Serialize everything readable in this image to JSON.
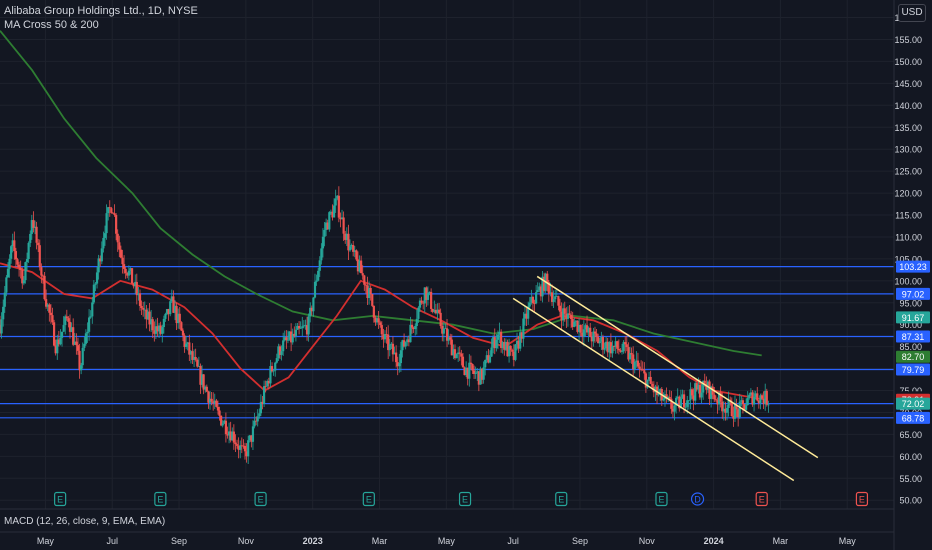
{
  "header": {
    "symbol_line": "Alibaba Group Holdings Ltd., 1D, NYSE",
    "indicator_line": "MA Cross 50 & 200",
    "currency_button": "USD"
  },
  "macd": {
    "label": "MACD (12, 26, close, 9, EMA, EMA)"
  },
  "colors": {
    "background": "#131722",
    "up": "#26a69a",
    "down": "#ef5350",
    "ma50": "#d32f2f",
    "ma200": "#2e7d32",
    "hline": "#2962ff",
    "channel": "#ffeb99",
    "grid": "#1e222d"
  },
  "chart_data": {
    "type": "candlestick",
    "y_range": [
      48,
      164
    ],
    "y_ticks": [
      160,
      155,
      150,
      145,
      140,
      135,
      130,
      125,
      120,
      115,
      110,
      105,
      100,
      95,
      90,
      85,
      80,
      75,
      70,
      65,
      60,
      55,
      50
    ],
    "x_ticks": [
      {
        "label": "May",
        "year": 2022,
        "month": 5
      },
      {
        "label": "Jul",
        "year": 2022,
        "month": 7
      },
      {
        "label": "Sep",
        "year": 2022,
        "month": 9
      },
      {
        "label": "Nov",
        "year": 2022,
        "month": 11
      },
      {
        "label": "2023",
        "year": 2023,
        "month": 1
      },
      {
        "label": "Mar",
        "year": 2023,
        "month": 3
      },
      {
        "label": "May",
        "year": 2023,
        "month": 5
      },
      {
        "label": "Jul",
        "year": 2023,
        "month": 7
      },
      {
        "label": "Sep",
        "year": 2023,
        "month": 9
      },
      {
        "label": "Nov",
        "year": 2023,
        "month": 11
      },
      {
        "label": "2024",
        "year": 2024,
        "month": 1
      },
      {
        "label": "Mar",
        "year": 2024,
        "month": 3
      },
      {
        "label": "May",
        "year": 2024,
        "month": 5
      }
    ],
    "x_range": [
      2022.22,
      2024.45
    ],
    "price_path": [
      [
        2022.22,
        90
      ],
      [
        2022.25,
        108
      ],
      [
        2022.28,
        100
      ],
      [
        2022.3,
        115
      ],
      [
        2022.33,
        98
      ],
      [
        2022.36,
        85
      ],
      [
        2022.39,
        92
      ],
      [
        2022.42,
        80
      ],
      [
        2022.45,
        95
      ],
      [
        2022.48,
        112
      ],
      [
        2022.5,
        118
      ],
      [
        2022.52,
        106
      ],
      [
        2022.55,
        100
      ],
      [
        2022.58,
        92
      ],
      [
        2022.62,
        88
      ],
      [
        2022.65,
        95
      ],
      [
        2022.68,
        86
      ],
      [
        2022.72,
        78
      ],
      [
        2022.76,
        70
      ],
      [
        2022.8,
        65
      ],
      [
        2022.83,
        60
      ],
      [
        2022.86,
        68
      ],
      [
        2022.89,
        78
      ],
      [
        2022.92,
        85
      ],
      [
        2022.95,
        87
      ],
      [
        2022.99,
        90
      ],
      [
        2023.03,
        112
      ],
      [
        2023.06,
        118
      ],
      [
        2023.09,
        108
      ],
      [
        2023.13,
        100
      ],
      [
        2023.17,
        88
      ],
      [
        2023.21,
        82
      ],
      [
        2023.25,
        90
      ],
      [
        2023.28,
        98
      ],
      [
        2023.31,
        92
      ],
      [
        2023.34,
        86
      ],
      [
        2023.38,
        80
      ],
      [
        2023.42,
        78
      ],
      [
        2023.46,
        88
      ],
      [
        2023.5,
        82
      ],
      [
        2023.54,
        94
      ],
      [
        2023.58,
        100
      ],
      [
        2023.62,
        93
      ],
      [
        2023.66,
        90
      ],
      [
        2023.7,
        87
      ],
      [
        2023.74,
        85
      ],
      [
        2023.78,
        84
      ],
      [
        2023.82,
        79
      ],
      [
        2023.86,
        74
      ],
      [
        2023.9,
        71
      ],
      [
        2023.94,
        74
      ],
      [
        2023.98,
        76
      ],
      [
        2024.02,
        72
      ],
      [
        2024.06,
        70
      ],
      [
        2024.1,
        74
      ],
      [
        2024.14,
        72.9
      ]
    ],
    "ma50": [
      [
        2022.22,
        104
      ],
      [
        2022.3,
        102
      ],
      [
        2022.38,
        97
      ],
      [
        2022.45,
        96
      ],
      [
        2022.52,
        100
      ],
      [
        2022.6,
        98
      ],
      [
        2022.68,
        94
      ],
      [
        2022.75,
        88
      ],
      [
        2022.82,
        80
      ],
      [
        2022.88,
        75
      ],
      [
        2022.94,
        78
      ],
      [
        2023.0,
        85
      ],
      [
        2023.06,
        92
      ],
      [
        2023.12,
        100
      ],
      [
        2023.18,
        98
      ],
      [
        2023.25,
        94
      ],
      [
        2023.32,
        91
      ],
      [
        2023.4,
        87
      ],
      [
        2023.48,
        85
      ],
      [
        2023.56,
        90
      ],
      [
        2023.62,
        92
      ],
      [
        2023.7,
        91
      ],
      [
        2023.78,
        88
      ],
      [
        2023.86,
        84
      ],
      [
        2023.94,
        78
      ],
      [
        2024.0,
        75
      ],
      [
        2024.06,
        74
      ],
      [
        2024.12,
        73
      ]
    ],
    "ma200": [
      [
        2022.22,
        157
      ],
      [
        2022.3,
        148
      ],
      [
        2022.38,
        137
      ],
      [
        2022.46,
        128
      ],
      [
        2022.55,
        120
      ],
      [
        2022.62,
        112
      ],
      [
        2022.7,
        106
      ],
      [
        2022.78,
        101
      ],
      [
        2022.86,
        97
      ],
      [
        2022.95,
        93
      ],
      [
        2023.05,
        91
      ],
      [
        2023.15,
        92
      ],
      [
        2023.25,
        91
      ],
      [
        2023.35,
        90
      ],
      [
        2023.45,
        88
      ],
      [
        2023.55,
        89
      ],
      [
        2023.65,
        92
      ],
      [
        2023.75,
        91
      ],
      [
        2023.85,
        88
      ],
      [
        2023.95,
        86
      ],
      [
        2024.05,
        84
      ],
      [
        2024.12,
        83
      ]
    ],
    "horizontal_levels": [
      {
        "value": 103.23,
        "label": "103.23",
        "color": "#2962ff"
      },
      {
        "value": 97.02,
        "label": "97.02",
        "color": "#2962ff"
      },
      {
        "value": 87.31,
        "label": "87.31",
        "color": "#2962ff"
      },
      {
        "value": 79.79,
        "label": "79.79",
        "color": "#2962ff"
      },
      {
        "value": 72.02,
        "label": "72.02",
        "color": "#2962ff"
      },
      {
        "value": 68.78,
        "label": "68.78",
        "color": "#2962ff"
      }
    ],
    "price_tags": [
      {
        "value": 91.67,
        "label": "91.67",
        "color": "#26a69a"
      },
      {
        "value": 82.7,
        "label": "82.70",
        "color": "#2e7d32"
      },
      {
        "value": 73.46,
        "label": "73.46",
        "color": "#131722"
      },
      {
        "value": 72.91,
        "label": "72.91",
        "color": "#d32f2f"
      },
      {
        "value": 72.02,
        "label": "72.02",
        "color": "#26a69a"
      }
    ],
    "channel_lines": [
      {
        "from": [
          2023.56,
          101
        ],
        "to": [
          2024.26,
          59.7
        ]
      },
      {
        "from": [
          2023.5,
          96
        ],
        "to": [
          2024.2,
          54.5
        ]
      }
    ],
    "event_markers": [
      {
        "x": 2022.37,
        "letter": "E",
        "type": "earnings"
      },
      {
        "x": 2022.62,
        "letter": "E",
        "type": "earnings"
      },
      {
        "x": 2022.87,
        "letter": "E",
        "type": "earnings"
      },
      {
        "x": 2023.14,
        "letter": "E",
        "type": "earnings"
      },
      {
        "x": 2023.38,
        "letter": "E",
        "type": "earnings"
      },
      {
        "x": 2023.62,
        "letter": "E",
        "type": "earnings"
      },
      {
        "x": 2023.87,
        "letter": "E",
        "type": "earnings"
      },
      {
        "x": 2023.96,
        "letter": "D",
        "type": "dividend"
      },
      {
        "x": 2024.12,
        "letter": "E",
        "type": "earnings-red"
      },
      {
        "x": 2024.37,
        "letter": "E",
        "type": "earnings-red"
      }
    ]
  }
}
